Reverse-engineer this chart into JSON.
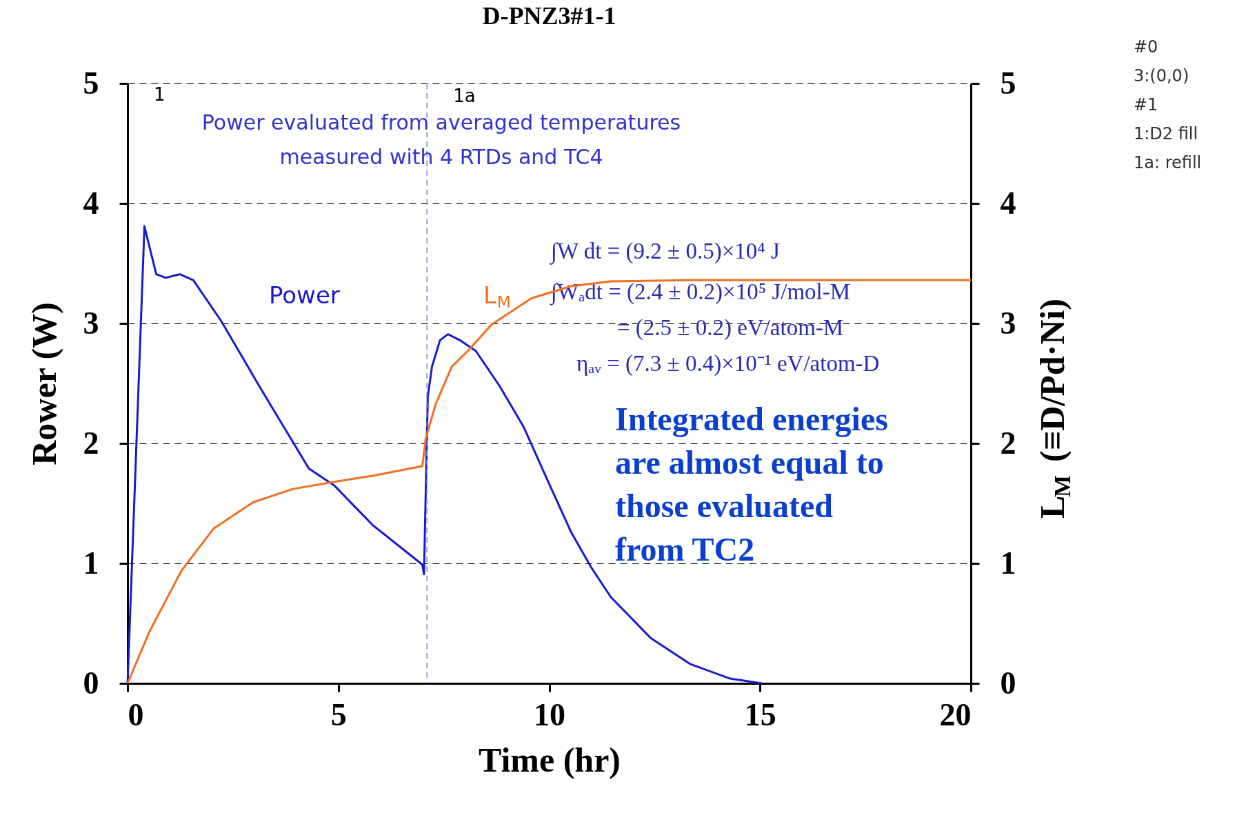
{
  "chart_data": {
    "type": "line",
    "title": "D-PNZ3#1-1",
    "xlabel": "Time  (hr)",
    "ylabel": "Rower  (W)",
    "y2label": "L$_{M}$  (≡D/Pd·Ni)",
    "xlim": [
      0,
      20
    ],
    "xticks": [
      0,
      5,
      10,
      15,
      20
    ],
    "ylim": [
      0,
      5
    ],
    "yticks": [
      0,
      1,
      2,
      3,
      4,
      5
    ],
    "y2lim": [
      0,
      5
    ],
    "y2ticks": [
      0,
      1,
      2,
      3,
      4,
      5
    ],
    "grid": "y",
    "marker": "none",
    "line_style": "solid",
    "series": [
      {
        "name": "Power",
        "color": "#1a1acc",
        "x": [
          0,
          0.2,
          0.4,
          0.68,
          0.9,
          1.24,
          1.56,
          2.22,
          3.17,
          4.3,
          4.9,
          5.81,
          6.99,
          7.03,
          7.12,
          7.22,
          7.41,
          7.6,
          7.88,
          8.26,
          8.82,
          9.39,
          9.95,
          10.52,
          10.99,
          11.46,
          12.4,
          13.35,
          14.29,
          15.04
        ],
        "values": [
          0,
          1.9,
          3.81,
          3.41,
          3.38,
          3.41,
          3.36,
          3.02,
          2.45,
          1.79,
          1.65,
          1.32,
          0.99,
          0.91,
          2.39,
          2.64,
          2.86,
          2.91,
          2.86,
          2.77,
          2.48,
          2.14,
          1.7,
          1.26,
          0.97,
          0.72,
          0.38,
          0.16,
          0.04,
          0
        ]
      },
      {
        "name": "L$_{M}$",
        "color": "#f07020",
        "axis": "y2",
        "x": [
          0,
          0.53,
          1.28,
          2.04,
          2.98,
          3.92,
          4.9,
          5.81,
          6.99,
          7.07,
          7.31,
          7.69,
          8.07,
          8.63,
          9.58,
          10.52,
          11.46,
          13.35,
          20
        ],
        "values": [
          0,
          0.44,
          0.94,
          1.29,
          1.51,
          1.62,
          1.68,
          1.73,
          1.81,
          2.04,
          2.33,
          2.64,
          2.77,
          2.99,
          3.21,
          3.31,
          3.35,
          3.36,
          3.36
        ]
      }
    ],
    "ref_lines": [
      {
        "axis": "x",
        "value": 7.1,
        "label": "1a",
        "color": "#6f8fcf",
        "line_style": "dashed"
      }
    ],
    "annotations": [
      "Power evaluated from averaged temperatures\nmeasured with 4 RTDs and TC4",
      "∫W dt = (9.2 ± 0.5)×10⁴ J",
      "∫Wₐdt = (2.4 ± 0.2)×10⁵ J/mol-M",
      "= (2.5 ± 0.2) eV/atom-M",
      "ηₐᵥ = (7.3 ± 0.4)×10⁻¹ eV/atom-D",
      "Integrated energies\nare almost equal to\nthose evaluated\nfrom TC2",
      "#0\n3:(0,0)\n#1\n1:D2 fill\n1a: refill",
      "1"
    ]
  }
}
